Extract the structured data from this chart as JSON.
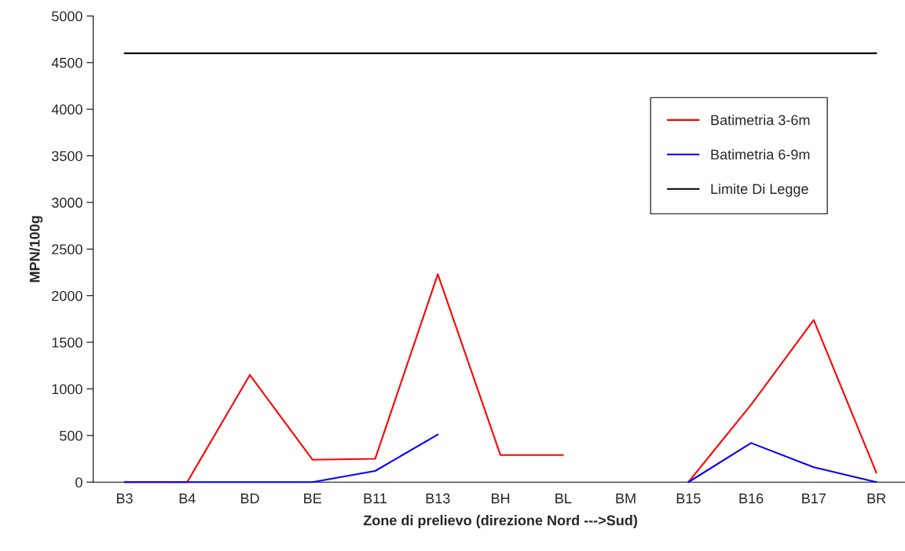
{
  "chart_data": {
    "type": "line",
    "xlabel": "Zone di prelievo (direzione Nord --->Sud)",
    "ylabel": "MPN/100g",
    "categories": [
      "B3",
      "B4",
      "BD",
      "BE",
      "B11",
      "B13",
      "BH",
      "BL",
      "BM",
      "B15",
      "B16",
      "B17",
      "BR"
    ],
    "series": [
      {
        "name": "Batimetria 3-6m",
        "color": "#ff0000",
        "values": [
          0,
          0,
          1150,
          240,
          250,
          2230,
          290,
          290,
          null,
          0,
          830,
          1740,
          100
        ]
      },
      {
        "name": "Batimetria 6-9m",
        "color": "#0000ff",
        "values": [
          0,
          0,
          0,
          0,
          120,
          510,
          null,
          null,
          null,
          0,
          420,
          160,
          0
        ]
      },
      {
        "name": "Limite Di Legge",
        "color": "#000000",
        "values": [
          4600,
          4600,
          4600,
          4600,
          4600,
          4600,
          4600,
          4600,
          4600,
          4600,
          4600,
          4600,
          4600
        ]
      }
    ],
    "ylim": [
      0,
      5000
    ],
    "yticks": [
      0,
      500,
      1000,
      1500,
      2000,
      2500,
      3000,
      3500,
      4000,
      4500,
      5000
    ],
    "grid": false,
    "legend": "upper right",
    "marker": "none",
    "line_style": "solid"
  }
}
